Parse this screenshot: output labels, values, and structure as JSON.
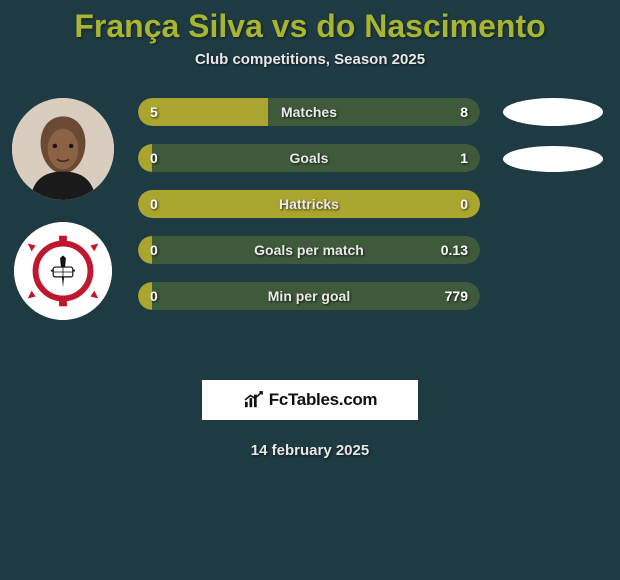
{
  "title": "França Silva vs do Nascimento",
  "subtitle": "Club competitions, Season 2025",
  "date": "14 february 2025",
  "branding_text": "FcTables.com",
  "colors": {
    "background": "#1e3a42",
    "player1_bar": "#a9a52e",
    "player2_bar": "#3e5a3a",
    "accent_title": "#a9b52e"
  },
  "bars": [
    {
      "label": "Matches",
      "left_val": "5",
      "right_val": "8",
      "left_pct": 38,
      "right_pct": 62
    },
    {
      "label": "Goals",
      "left_val": "0",
      "right_val": "1",
      "left_pct": 4,
      "right_pct": 96
    },
    {
      "label": "Hattricks",
      "left_val": "0",
      "right_val": "0",
      "left_pct": 100,
      "right_pct": 0
    },
    {
      "label": "Goals per match",
      "left_val": "0",
      "right_val": "0.13",
      "left_pct": 4,
      "right_pct": 96
    },
    {
      "label": "Min per goal",
      "left_val": "0",
      "right_val": "779",
      "left_pct": 4,
      "right_pct": 96
    }
  ]
}
